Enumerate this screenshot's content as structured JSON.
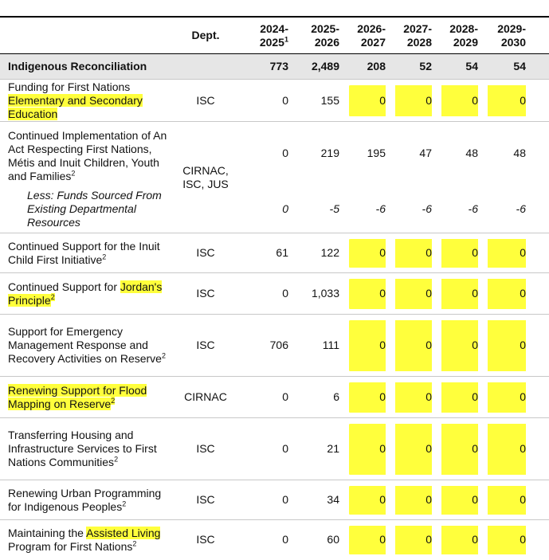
{
  "table": {
    "header": [
      {
        "text": ""
      },
      {
        "text": "Dept."
      },
      {
        "text": "2024-2025",
        "note": "1"
      },
      {
        "text": "2025-2026"
      },
      {
        "text": "2026-2027"
      },
      {
        "text": "2027-2028"
      },
      {
        "text": "2028-2029"
      },
      {
        "text": "2029-2030"
      }
    ],
    "section": {
      "label": "Indigenous Reconciliation",
      "values": [
        "773",
        "2,489",
        "208",
        "52",
        "54",
        "54"
      ]
    },
    "highlight_color": "#ffff3c",
    "rows": [
      {
        "label": [
          {
            "text": "Funding for First Nations "
          },
          {
            "text": "Elementary and Secondary Education",
            "highlight": true
          }
        ],
        "dept": "ISC",
        "values": [
          "0",
          "155",
          "0",
          "0",
          "0",
          "0"
        ],
        "highlight_values": true
      },
      {
        "label": [
          {
            "text": "Continued Implementation of An Act Respecting First Nations, Métis and Inuit Children, Youth and Families"
          }
        ],
        "note": "2",
        "dept": "CIRNAC, ISC, JUS",
        "values": [
          "0",
          "219",
          "195",
          "47",
          "48",
          "48"
        ],
        "sub": {
          "label": "Less: Funds Sourced From Existing Departmental Resources",
          "values": [
            "0",
            "-5",
            "-6",
            "-6",
            "-6",
            "-6"
          ]
        }
      },
      {
        "label": [
          {
            "text": "Continued Support for the Inuit Child First Initiative"
          }
        ],
        "note": "2",
        "dept": "ISC",
        "values": [
          "61",
          "122",
          "0",
          "0",
          "0",
          "0"
        ],
        "highlight_values": true
      },
      {
        "label": [
          {
            "text": "Continued Support for "
          },
          {
            "text": "Jordan's Principle",
            "highlight": true
          }
        ],
        "note": "2",
        "note_highlight": true,
        "dept": "ISC",
        "values": [
          "0",
          "1,033",
          "0",
          "0",
          "0",
          "0"
        ],
        "highlight_values": true
      },
      {
        "label": [
          {
            "text": "Support for Emergency Management Response and Recovery Activities on Reserve"
          }
        ],
        "note": "2",
        "dept": "ISC",
        "values": [
          "706",
          "111",
          "0",
          "0",
          "0",
          "0"
        ],
        "highlight_values": true
      },
      {
        "label": [
          {
            "text": "Renewing Support for Flood Mapping on Reserve",
            "highlight": true
          }
        ],
        "note": "2",
        "note_highlight": true,
        "dept": "CIRNAC",
        "values": [
          "0",
          "6",
          "0",
          "0",
          "0",
          "0"
        ],
        "highlight_values": true
      },
      {
        "label": [
          {
            "text": "Transferring Housing and Infrastructure Services to First Nations Communities"
          }
        ],
        "note": "2",
        "dept": "ISC",
        "values": [
          "0",
          "21",
          "0",
          "0",
          "0",
          "0"
        ],
        "highlight_values": true
      },
      {
        "label": [
          {
            "text": "Renewing Urban Programming for Indigenous Peoples"
          }
        ],
        "note": "2",
        "dept": "ISC",
        "values": [
          "0",
          "34",
          "0",
          "0",
          "0",
          "0"
        ],
        "highlight_values": true
      },
      {
        "label": [
          {
            "text": "Maintaining the "
          },
          {
            "text": "Assisted Living",
            "highlight": true
          },
          {
            "text": " Program for First Nations"
          }
        ],
        "note": "2",
        "dept": "ISC",
        "values": [
          "0",
          "60",
          "0",
          "0",
          "0",
          "0"
        ],
        "highlight_values": true
      }
    ]
  }
}
